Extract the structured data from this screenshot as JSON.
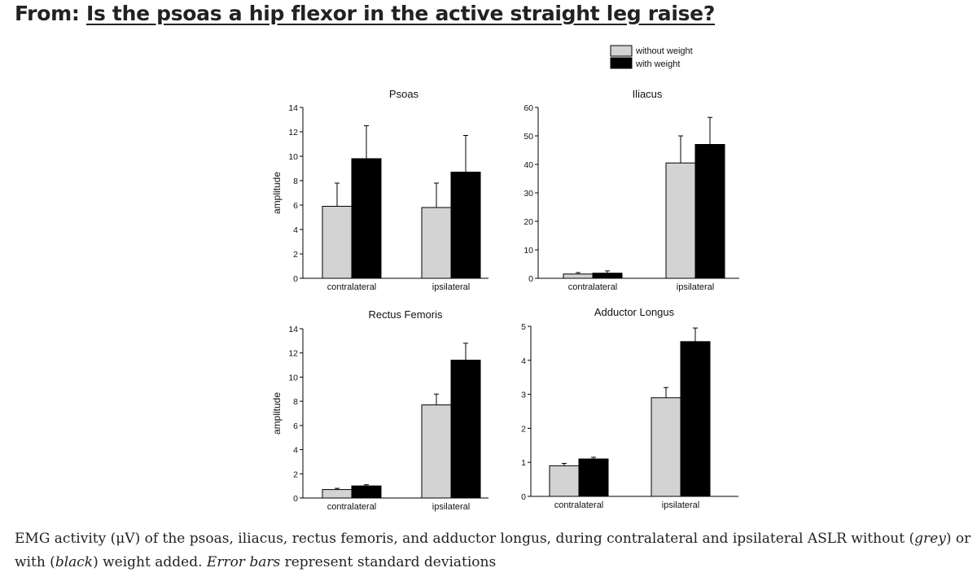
{
  "header": {
    "prefix": "From:",
    "article_title": "Is the psoas a hip flexor in the active straight leg raise?"
  },
  "legend": {
    "items": [
      {
        "label": "without weight",
        "color": "#d3d3d3"
      },
      {
        "label": "with weight",
        "color": "#000000"
      }
    ]
  },
  "chart_data": [
    {
      "type": "bar",
      "title": "Psoas",
      "ylabel": "amplitude",
      "xlabel": "",
      "categories": [
        "contralateral",
        "ipsilateral"
      ],
      "ylim": [
        0,
        14
      ],
      "yticks": [
        0,
        2,
        4,
        6,
        8,
        10,
        12,
        14
      ],
      "series": [
        {
          "name": "without weight",
          "color": "#d3d3d3",
          "values": [
            5.9,
            5.8
          ],
          "errors": [
            1.9,
            2.0
          ]
        },
        {
          "name": "with weight",
          "color": "#000000",
          "values": [
            9.8,
            8.7
          ],
          "errors": [
            2.7,
            3.0
          ]
        }
      ]
    },
    {
      "type": "bar",
      "title": "Iliacus",
      "ylabel": "",
      "xlabel": "",
      "categories": [
        "contralateral",
        "ipsilateral"
      ],
      "ylim": [
        0,
        60
      ],
      "yticks": [
        0,
        10,
        20,
        30,
        40,
        50,
        60
      ],
      "series": [
        {
          "name": "without weight",
          "color": "#d3d3d3",
          "values": [
            1.5,
            40.5
          ],
          "errors": [
            0.5,
            9.5
          ]
        },
        {
          "name": "with weight",
          "color": "#000000",
          "values": [
            1.8,
            47.0
          ],
          "errors": [
            0.8,
            9.5
          ]
        }
      ]
    },
    {
      "type": "bar",
      "title": "Rectus Femoris",
      "ylabel": "amplitude",
      "xlabel": "",
      "categories": [
        "contralateral",
        "ipsilateral"
      ],
      "ylim": [
        0,
        14
      ],
      "yticks": [
        0,
        2,
        4,
        6,
        8,
        10,
        12,
        14
      ],
      "series": [
        {
          "name": "without weight",
          "color": "#d3d3d3",
          "values": [
            0.7,
            7.7
          ],
          "errors": [
            0.1,
            0.9
          ]
        },
        {
          "name": "with weight",
          "color": "#000000",
          "values": [
            1.0,
            11.4
          ],
          "errors": [
            0.1,
            1.4
          ]
        }
      ]
    },
    {
      "type": "bar",
      "title": "Adductor Longus",
      "ylabel": "",
      "xlabel": "",
      "categories": [
        "contralateral",
        "ipsilateral"
      ],
      "ylim": [
        0,
        5
      ],
      "yticks": [
        0,
        1,
        2,
        3,
        4,
        5
      ],
      "series": [
        {
          "name": "without weight",
          "color": "#d3d3d3",
          "values": [
            0.9,
            2.9
          ],
          "errors": [
            0.07,
            0.3
          ]
        },
        {
          "name": "with weight",
          "color": "#000000",
          "values": [
            1.1,
            4.55
          ],
          "errors": [
            0.05,
            0.4
          ]
        }
      ]
    }
  ],
  "caption": {
    "part1": "EMG activity (μV) of the psoas, iliacus, rectus femoris, and adductor longus, during contralateral and ipsilateral ASLR without (",
    "grey_word": "grey",
    "part2": ") or with (",
    "black_word": "black",
    "part3": ") weight added. ",
    "error_bars": "Error bars",
    "part4": " represent standard deviations"
  }
}
